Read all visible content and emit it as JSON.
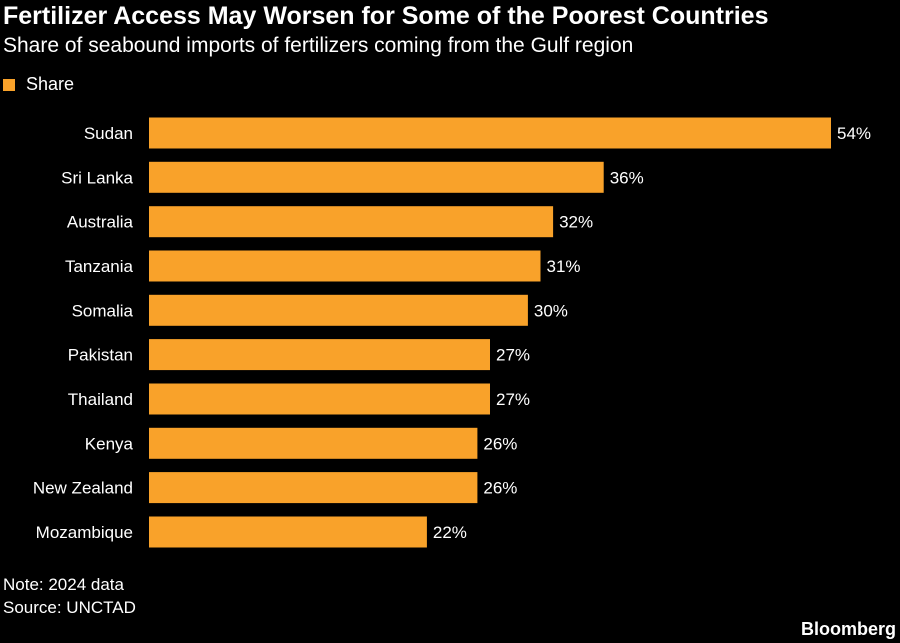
{
  "chart_data": {
    "type": "bar",
    "orientation": "horizontal",
    "title": "Fertilizer Access May Worsen for Some of the Poorest Countries",
    "subtitle": "Share of seabound imports of fertilizers coming from the Gulf region",
    "legend": [
      {
        "name": "Share",
        "color": "#f9a22a"
      }
    ],
    "categories": [
      "Sudan",
      "Sri Lanka",
      "Australia",
      "Tanzania",
      "Somalia",
      "Pakistan",
      "Thailand",
      "Kenya",
      "New Zealand",
      "Mozambique"
    ],
    "values": [
      54,
      36,
      32,
      31,
      30,
      27,
      27,
      26,
      26,
      22
    ],
    "value_labels": [
      "54%",
      "36%",
      "32%",
      "31%",
      "30%",
      "27%",
      "27%",
      "26%",
      "26%",
      "22%"
    ],
    "xlim": [
      0,
      54
    ],
    "unit": "%",
    "grid": false
  },
  "notes": {
    "note": "Note: 2024 data",
    "source": "Source: UNCTAD"
  },
  "branding": {
    "name": "Bloomberg"
  }
}
